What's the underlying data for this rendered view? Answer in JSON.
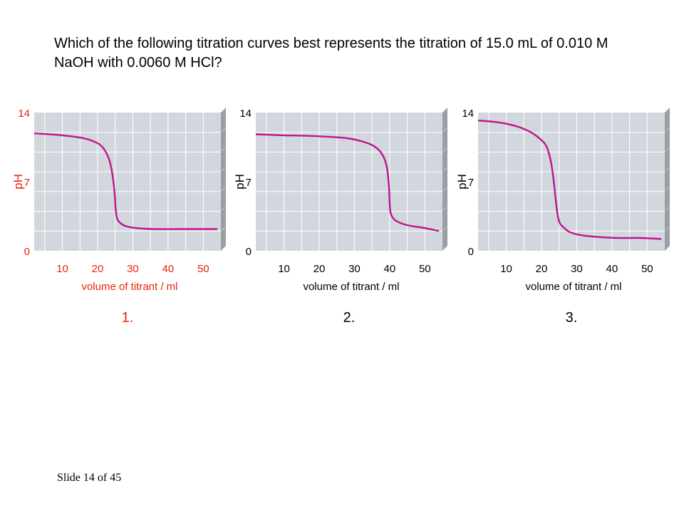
{
  "question": "Which of the following titration curves best represents the titration of 15.0 mL of 0.010 M NaOH with 0.0060 M HCl?",
  "slide_number": "Slide 14 of 45",
  "colors": {
    "curve": "#c0148c",
    "plot_background": "#d2d7de",
    "plot_wall": "#9a9fa6",
    "gridline": "#ffffff",
    "highlight_text": "#e8240c",
    "normal_text": "#000000"
  },
  "chart_data": [
    {
      "type": "line",
      "caption": "1.",
      "text_color": "#e8240c",
      "xlabel": "volume of titrant / ml",
      "ylabel": "pH",
      "x_ticks": [
        "10",
        "20",
        "30",
        "40",
        "50"
      ],
      "y_ticks": [
        "0",
        "7",
        "14"
      ],
      "xlim": [
        2,
        55
      ],
      "ylim": [
        0,
        14
      ],
      "grid": true,
      "series": [
        {
          "x": [
            2,
            10,
            16,
            20,
            22,
            23.5,
            24.5,
            24.9,
            25.1,
            25.5,
            26.5,
            28,
            31,
            36,
            42,
            48,
            54
          ],
          "values": [
            11.9,
            11.7,
            11.4,
            10.9,
            10.2,
            9.0,
            7.0,
            5.5,
            4.4,
            3.3,
            2.8,
            2.5,
            2.3,
            2.2,
            2.2,
            2.2,
            2.2
          ]
        }
      ]
    },
    {
      "type": "line",
      "caption": "2.",
      "text_color": "#000000",
      "xlabel": "volume of titrant / ml",
      "ylabel": "pH",
      "x_ticks": [
        "10",
        "20",
        "30",
        "40",
        "50"
      ],
      "y_ticks": [
        "0",
        "7",
        "14"
      ],
      "xlim": [
        2,
        55
      ],
      "ylim": [
        0,
        14
      ],
      "grid": true,
      "series": [
        {
          "x": [
            2,
            10,
            20,
            28,
            33,
            36,
            38,
            39.2,
            39.8,
            40.0,
            40.2,
            40.8,
            42,
            45,
            50,
            54
          ],
          "values": [
            11.8,
            11.7,
            11.6,
            11.4,
            11.0,
            10.5,
            9.7,
            8.5,
            6.5,
            5.0,
            4.0,
            3.4,
            3.0,
            2.6,
            2.3,
            2.0
          ]
        }
      ]
    },
    {
      "type": "line",
      "caption": "3.",
      "text_color": "#000000",
      "xlabel": "volume of titrant / ml",
      "ylabel": "pH",
      "x_ticks": [
        "10",
        "20",
        "30",
        "40",
        "50"
      ],
      "y_ticks": [
        "0",
        "7",
        "14"
      ],
      "xlim": [
        2,
        55
      ],
      "ylim": [
        0,
        14
      ],
      "grid": true,
      "series": [
        {
          "x": [
            2,
            8,
            13,
            17,
            20,
            21.5,
            22.7,
            23.5,
            24.1,
            24.6,
            25.2,
            26.5,
            28,
            31,
            36,
            42,
            48,
            54
          ],
          "values": [
            13.2,
            13.0,
            12.6,
            12.0,
            11.2,
            10.5,
            9.0,
            7.0,
            5.0,
            3.6,
            2.8,
            2.3,
            1.9,
            1.6,
            1.4,
            1.3,
            1.3,
            1.2
          ]
        }
      ]
    }
  ]
}
